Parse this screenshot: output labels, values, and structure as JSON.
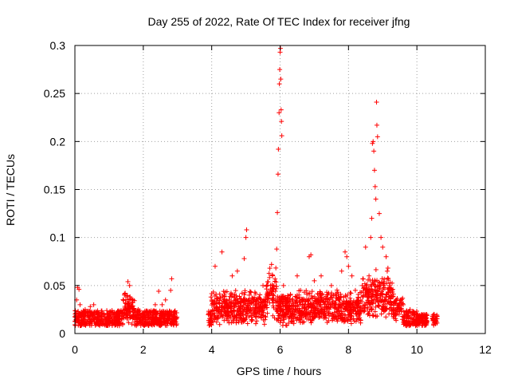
{
  "chart_data": {
    "type": "scatter",
    "title": "Day 255 of 2022, Rate Of TEC Index for receiver jfng",
    "xlabel": "GPS time / hours",
    "ylabel": "ROTI / TECUs",
    "xlim": [
      0,
      12
    ],
    "ylim": [
      0,
      0.3
    ],
    "xticks": [
      0,
      2,
      4,
      6,
      8,
      10,
      12
    ],
    "yticks": [
      0,
      0.05,
      0.1,
      0.15,
      0.2,
      0.25,
      0.3
    ],
    "xtick_labels": [
      "0",
      "2",
      "4",
      "6",
      "8",
      "10",
      "12"
    ],
    "ytick_labels": [
      "0",
      "0.05",
      "0.1",
      "0.15",
      "0.2",
      "0.25",
      "0.3"
    ],
    "grid": true,
    "marker": "+",
    "color": "#ff0000",
    "data_gap_hours": [
      3.0,
      3.9
    ],
    "series": [
      {
        "name": "ROTI",
        "points": [
          [
            0.05,
            0.035
          ],
          [
            0.08,
            0.048
          ],
          [
            0.12,
            0.046
          ],
          [
            0.15,
            0.03
          ],
          [
            0.2,
            0.022
          ],
          [
            0.3,
            0.025
          ],
          [
            0.45,
            0.028
          ],
          [
            0.55,
            0.03
          ],
          [
            0.7,
            0.022
          ],
          [
            0.85,
            0.02
          ],
          [
            1.0,
            0.018
          ],
          [
            1.2,
            0.02
          ],
          [
            1.35,
            0.024
          ],
          [
            1.45,
            0.04
          ],
          [
            1.55,
            0.054
          ],
          [
            1.6,
            0.05
          ],
          [
            1.7,
            0.035
          ],
          [
            1.85,
            0.025
          ],
          [
            2.0,
            0.02
          ],
          [
            2.2,
            0.022
          ],
          [
            2.35,
            0.03
          ],
          [
            2.45,
            0.044
          ],
          [
            2.55,
            0.03
          ],
          [
            2.65,
            0.035
          ],
          [
            2.8,
            0.045
          ],
          [
            2.83,
            0.057
          ],
          [
            2.9,
            0.02
          ],
          [
            2.95,
            0.015
          ],
          [
            3.98,
            0.038
          ],
          [
            4.05,
            0.032
          ],
          [
            4.1,
            0.07
          ],
          [
            4.3,
            0.085
          ],
          [
            4.45,
            0.03
          ],
          [
            4.6,
            0.06
          ],
          [
            4.75,
            0.065
          ],
          [
            4.95,
            0.078
          ],
          [
            5.0,
            0.1
          ],
          [
            5.02,
            0.108
          ],
          [
            5.1,
            0.04
          ],
          [
            5.3,
            0.035
          ],
          [
            5.5,
            0.05
          ],
          [
            5.7,
            0.068
          ],
          [
            5.75,
            0.072
          ],
          [
            5.9,
            0.088
          ],
          [
            5.92,
            0.126
          ],
          [
            5.94,
            0.166
          ],
          [
            5.95,
            0.192
          ],
          [
            5.97,
            0.23
          ],
          [
            5.98,
            0.26
          ],
          [
            5.99,
            0.275
          ],
          [
            6.0,
            0.293
          ],
          [
            6.01,
            0.297
          ],
          [
            6.02,
            0.265
          ],
          [
            6.03,
            0.233
          ],
          [
            6.04,
            0.221
          ],
          [
            6.05,
            0.206
          ],
          [
            6.1,
            0.05
          ],
          [
            6.3,
            0.04
          ],
          [
            6.5,
            0.06
          ],
          [
            6.6,
            0.045
          ],
          [
            6.85,
            0.08
          ],
          [
            6.9,
            0.082
          ],
          [
            7.0,
            0.055
          ],
          [
            7.2,
            0.06
          ],
          [
            7.5,
            0.05
          ],
          [
            7.8,
            0.065
          ],
          [
            7.9,
            0.085
          ],
          [
            7.95,
            0.08
          ],
          [
            8.0,
            0.07
          ],
          [
            8.1,
            0.06
          ],
          [
            8.2,
            0.045
          ],
          [
            8.4,
            0.05
          ],
          [
            8.5,
            0.09
          ],
          [
            8.6,
            0.06
          ],
          [
            8.65,
            0.1
          ],
          [
            8.68,
            0.12
          ],
          [
            8.7,
            0.198
          ],
          [
            8.72,
            0.2
          ],
          [
            8.74,
            0.19
          ],
          [
            8.76,
            0.17
          ],
          [
            8.78,
            0.153
          ],
          [
            8.8,
            0.14
          ],
          [
            8.82,
            0.241
          ],
          [
            8.83,
            0.217
          ],
          [
            8.85,
            0.205
          ],
          [
            8.9,
            0.125
          ],
          [
            8.95,
            0.1
          ],
          [
            9.0,
            0.09
          ],
          [
            9.1,
            0.08
          ],
          [
            9.2,
            0.05
          ],
          [
            9.4,
            0.035
          ],
          [
            9.6,
            0.03
          ],
          [
            9.8,
            0.025
          ],
          [
            10.0,
            0.02
          ],
          [
            10.2,
            0.018
          ],
          [
            10.5,
            0.02
          ],
          [
            10.55,
            0.015
          ]
        ]
      }
    ]
  }
}
